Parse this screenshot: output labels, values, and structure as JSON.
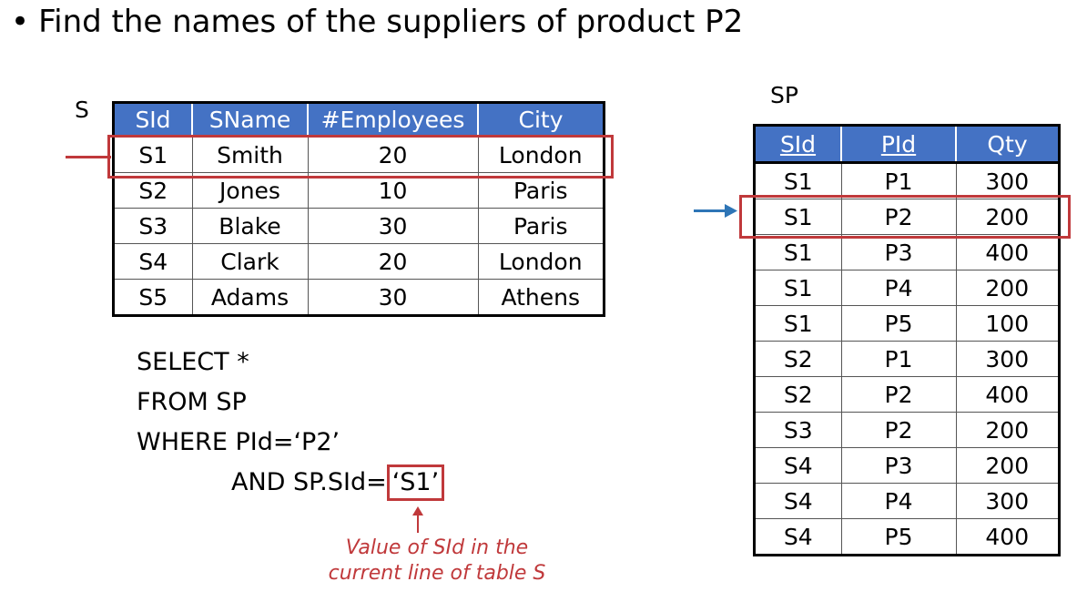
{
  "title": "Find the names of the suppliers of product P2",
  "tables": {
    "s": {
      "label": "S",
      "headers": [
        "SId",
        "SName",
        "#Employees",
        "City"
      ],
      "rows": [
        [
          "S1",
          "Smith",
          "20",
          "London"
        ],
        [
          "S2",
          "Jones",
          "10",
          "Paris"
        ],
        [
          "S3",
          "Blake",
          "30",
          "Paris"
        ],
        [
          "S4",
          "Clark",
          "20",
          "London"
        ],
        [
          "S5",
          "Adams",
          "30",
          "Athens"
        ]
      ]
    },
    "sp": {
      "label": "SP",
      "headers": [
        "SId",
        "PId",
        "Qty"
      ],
      "rows": [
        [
          "S1",
          "P1",
          "300"
        ],
        [
          "S1",
          "P2",
          "200"
        ],
        [
          "S1",
          "P3",
          "400"
        ],
        [
          "S1",
          "P4",
          "200"
        ],
        [
          "S1",
          "P5",
          "100"
        ],
        [
          "S2",
          "P1",
          "300"
        ],
        [
          "S2",
          "P2",
          "400"
        ],
        [
          "S3",
          "P2",
          "200"
        ],
        [
          "S4",
          "P3",
          "200"
        ],
        [
          "S4",
          "P4",
          "300"
        ],
        [
          "S4",
          "P5",
          "400"
        ]
      ]
    }
  },
  "query": {
    "line1": "SELECT *",
    "line2": "FROM SP",
    "line3": "WHERE PId=‘P2’",
    "line4_prefix": "AND SP.SId=",
    "line4_value": "‘S1’"
  },
  "annotation": {
    "line1": "Value of SId in the",
    "line2": "current line of table S"
  },
  "colors": {
    "header_blue": "#4472c4",
    "highlight_red": "#c0393b",
    "arrow_blue": "#2e75b6"
  }
}
